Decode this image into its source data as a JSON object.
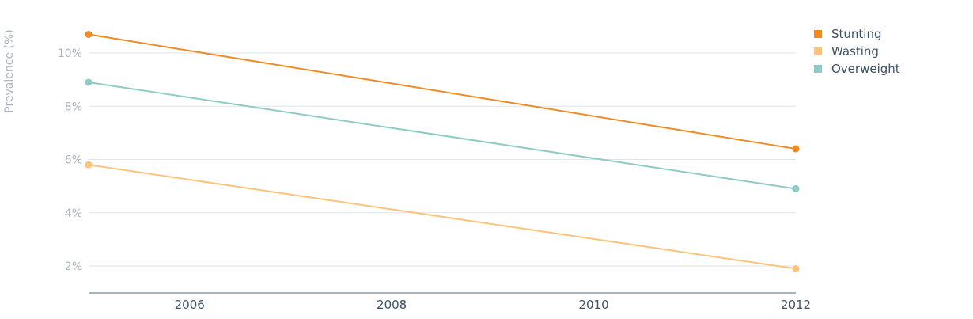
{
  "chart_data": {
    "type": "line",
    "title": "",
    "xlabel": "",
    "ylabel": "Prevalence (%)",
    "x": [
      2005,
      2012
    ],
    "xlim": [
      2005,
      2012
    ],
    "xticks": [
      2006,
      2008,
      2010,
      2012
    ],
    "xtick_labels": [
      "2006",
      "2008",
      "2010",
      "2012"
    ],
    "ylim": [
      1,
      11
    ],
    "yticks": [
      2,
      4,
      6,
      8,
      10
    ],
    "ytick_labels": [
      "2%",
      "4%",
      "6%",
      "8%",
      "10%"
    ],
    "grid": true,
    "legend_position": "top-right",
    "series": [
      {
        "name": "Stunting",
        "color": "#f08a24",
        "values": [
          10.7,
          6.4
        ]
      },
      {
        "name": "Wasting",
        "color": "#fbc47c",
        "values": [
          5.8,
          1.9
        ]
      },
      {
        "name": "Overweight",
        "color": "#8ecac6",
        "values": [
          8.9,
          4.9
        ]
      }
    ]
  }
}
